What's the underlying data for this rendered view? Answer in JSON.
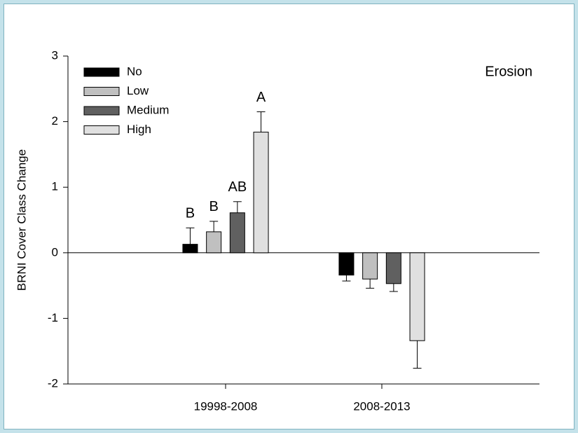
{
  "chart_data": {
    "type": "bar",
    "ylabel": "BRNI Cover Class Change",
    "annotation": "Erosion",
    "categories": [
      "19998-2008",
      "2008-2013"
    ],
    "series": [
      {
        "name": "No",
        "color": "#000000",
        "values": [
          0.13,
          -0.34
        ],
        "errors": [
          0.25,
          0.09
        ],
        "letters": [
          "B",
          null
        ]
      },
      {
        "name": "Low",
        "color": "#c0c0c0",
        "values": [
          0.32,
          -0.4
        ],
        "errors": [
          0.16,
          0.14
        ],
        "letters": [
          "B",
          null
        ]
      },
      {
        "name": "Medium",
        "color": "#606060",
        "values": [
          0.61,
          -0.47
        ],
        "errors": [
          0.17,
          0.12
        ],
        "letters": [
          "AB",
          null
        ]
      },
      {
        "name": "High",
        "color": "#e0e0e0",
        "values": [
          1.84,
          -1.34
        ],
        "errors": [
          0.31,
          0.42
        ],
        "letters": [
          "A",
          null
        ]
      }
    ],
    "ylim": [
      -2,
      3
    ],
    "yticks": [
      -2,
      -1,
      0,
      1,
      2,
      3
    ],
    "legend": "upper left",
    "grid": false
  }
}
